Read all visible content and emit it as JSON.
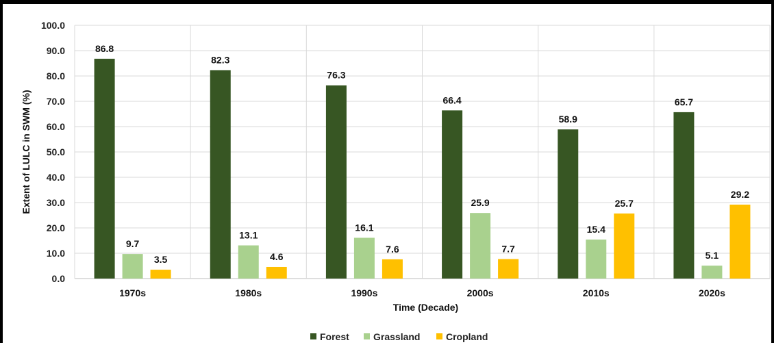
{
  "chart_data": {
    "type": "bar",
    "title": "",
    "xlabel": "Time (Decade)",
    "ylabel": "Extent of LULC in SWM (%)",
    "ylim": [
      0,
      100
    ],
    "yticks": [
      "0.0",
      "10.0",
      "20.0",
      "30.0",
      "40.0",
      "50.0",
      "60.0",
      "70.0",
      "80.0",
      "90.0",
      "100.0"
    ],
    "categories": [
      "1970s",
      "1980s",
      "1990s",
      "2000s",
      "2010s",
      "2020s"
    ],
    "series": [
      {
        "name": "Forest",
        "color": "#375623",
        "values": [
          86.8,
          82.3,
          76.3,
          66.4,
          58.9,
          65.7
        ]
      },
      {
        "name": "Grassland",
        "color": "#a9d18e",
        "values": [
          9.7,
          13.1,
          16.1,
          25.9,
          15.4,
          5.1
        ]
      },
      {
        "name": "Cropland",
        "color": "#ffc000",
        "values": [
          3.5,
          4.6,
          7.6,
          7.7,
          25.7,
          29.2
        ]
      }
    ],
    "value_labels": [
      [
        "86.8",
        "82.3",
        "76.3",
        "66.4",
        "58.9",
        "65.7"
      ],
      [
        "9.7",
        "13.1",
        "16.1",
        "25.9",
        "15.4",
        "5.1"
      ],
      [
        "3.5",
        "4.6",
        "7.6",
        "7.7",
        "25.7",
        "29.2"
      ]
    ],
    "grid": true,
    "legend_position": "bottom"
  }
}
